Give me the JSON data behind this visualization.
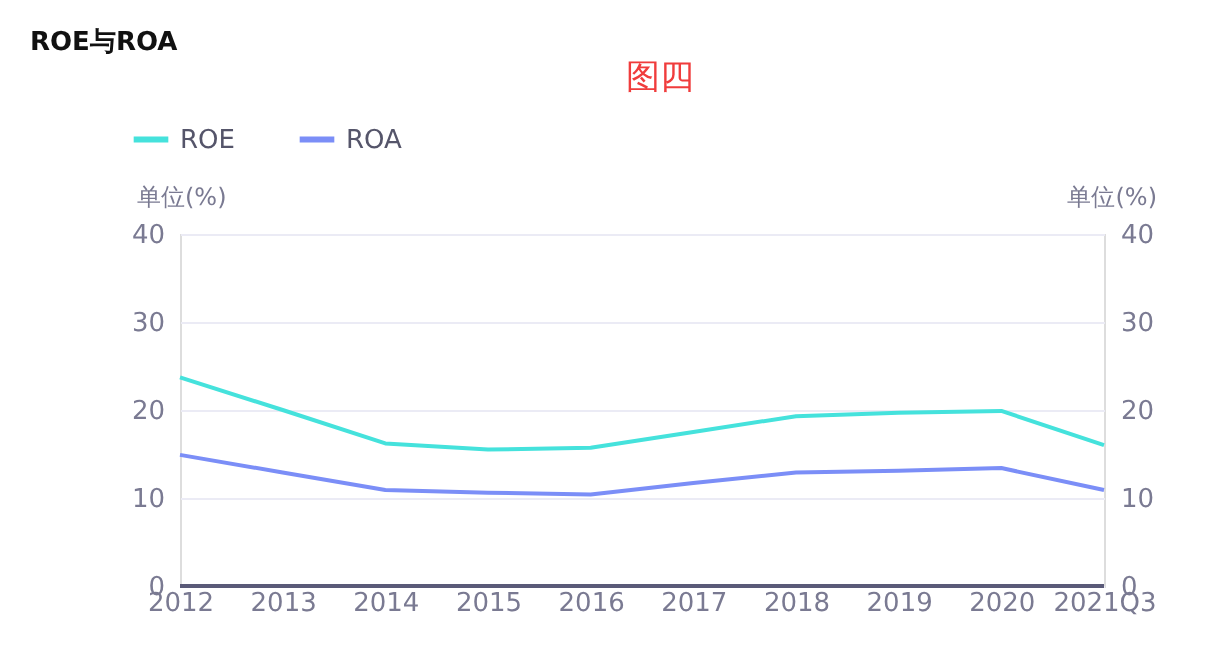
{
  "chart_data": {
    "type": "line",
    "title": "ROE与ROA",
    "annotations": [
      "图四"
    ],
    "ylabel": "单位(%)",
    "y2label": "单位(%)",
    "categories": [
      "2012",
      "2013",
      "2014",
      "2015",
      "2016",
      "2017",
      "2018",
      "2019",
      "2020",
      "2021Q3"
    ],
    "series": [
      {
        "name": "ROE",
        "color": "#45e2dc",
        "values": [
          23.7,
          20.0,
          16.2,
          15.5,
          15.7,
          17.5,
          19.3,
          19.7,
          19.9,
          16.0
        ]
      },
      {
        "name": "ROA",
        "color": "#7b8ef7",
        "values": [
          14.9,
          12.9,
          10.9,
          10.6,
          10.4,
          11.7,
          12.9,
          13.1,
          13.4,
          10.9
        ]
      }
    ],
    "ylim": [
      0,
      40
    ],
    "yticks": [
      0,
      10,
      20,
      30,
      40
    ],
    "y2lim": [
      0,
      40
    ],
    "y2ticks": [
      0,
      10,
      20,
      30,
      40
    ],
    "grid": "y",
    "legend": "top left",
    "marker": "none",
    "line_style": "solid"
  }
}
